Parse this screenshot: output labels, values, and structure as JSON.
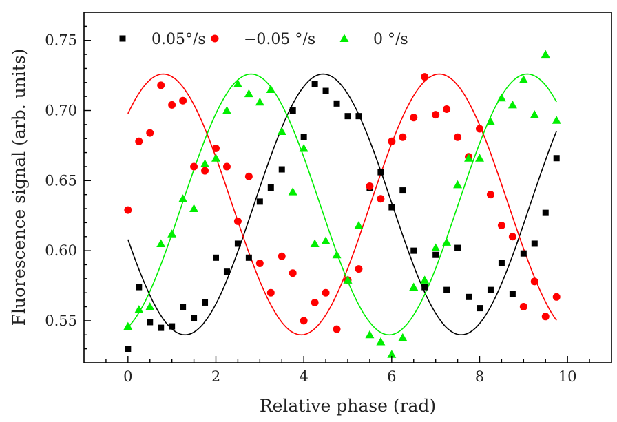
{
  "chart_data": {
    "type": "scatter",
    "xlabel": "Relative phase (rad)",
    "ylabel": "Fluorescence signal (arb. units)",
    "xlim": [
      -1,
      11
    ],
    "ylim": [
      0.52,
      0.77
    ],
    "xticks": [
      "0",
      "2",
      "4",
      "6",
      "8",
      "10"
    ],
    "yticks": [
      "0.55",
      "0.60",
      "0.65",
      "0.70",
      "0.75"
    ],
    "grid": false,
    "legend_position": "top",
    "x": [
      0,
      0.25,
      0.5,
      0.75,
      1,
      1.25,
      1.5,
      1.75,
      2,
      2.25,
      2.5,
      2.75,
      3,
      3.25,
      3.5,
      3.75,
      4,
      4.25,
      4.5,
      4.75,
      5,
      5.25,
      5.5,
      5.75,
      6,
      6.25,
      6.5,
      6.75,
      7,
      7.25,
      7.5,
      7.75,
      8,
      8.25,
      8.5,
      8.75,
      9,
      9.25,
      9.5,
      9.75
    ],
    "series": [
      {
        "name": "0.05°/s",
        "marker": "square",
        "color": "#000000",
        "values": [
          0.53,
          0.574,
          0.549,
          0.545,
          0.546,
          0.56,
          0.552,
          0.563,
          0.595,
          0.585,
          0.605,
          0.595,
          0.635,
          0.645,
          0.658,
          0.7,
          0.681,
          0.719,
          0.714,
          0.705,
          0.696,
          0.696,
          0.645,
          0.656,
          0.631,
          0.643,
          0.6,
          0.574,
          0.597,
          0.572,
          0.602,
          0.567,
          0.559,
          0.572,
          0.591,
          0.569,
          0.598,
          0.605,
          0.627,
          0.666
        ],
        "fit": {
          "offset": 0.633,
          "amplitude": 0.093,
          "peak_phase": 4.44
        }
      },
      {
        "name": "−0.05 °/s",
        "marker": "circle",
        "color": "#ff0000",
        "values": [
          0.629,
          0.678,
          0.684,
          0.718,
          0.704,
          0.707,
          0.66,
          0.657,
          0.673,
          0.66,
          0.621,
          0.653,
          0.591,
          0.57,
          0.596,
          0.584,
          0.55,
          0.563,
          0.57,
          0.544,
          0.579,
          0.587,
          0.646,
          0.637,
          0.678,
          0.681,
          0.695,
          0.724,
          0.697,
          0.701,
          0.681,
          0.667,
          0.687,
          0.64,
          0.618,
          0.61,
          0.56,
          0.578,
          0.553,
          0.567
        ],
        "fit": {
          "offset": 0.633,
          "amplitude": 0.093,
          "peak_phase": 0.8
        }
      },
      {
        "name": "0 °/s",
        "marker": "triangle",
        "color": "#00ee00",
        "values": [
          0.546,
          0.558,
          0.56,
          0.605,
          0.612,
          0.637,
          0.63,
          0.662,
          0.666,
          0.7,
          0.719,
          0.712,
          0.706,
          0.715,
          0.685,
          0.642,
          0.673,
          0.605,
          0.607,
          0.597,
          0.579,
          0.618,
          0.54,
          0.535,
          0.526,
          0.538,
          0.574,
          0.579,
          0.602,
          0.606,
          0.647,
          0.666,
          0.666,
          0.692,
          0.709,
          0.704,
          0.722,
          0.697,
          0.74,
          0.693
        ],
        "fit": {
          "offset": 0.633,
          "amplitude": 0.093,
          "peak_phase": 2.8
        }
      }
    ]
  }
}
